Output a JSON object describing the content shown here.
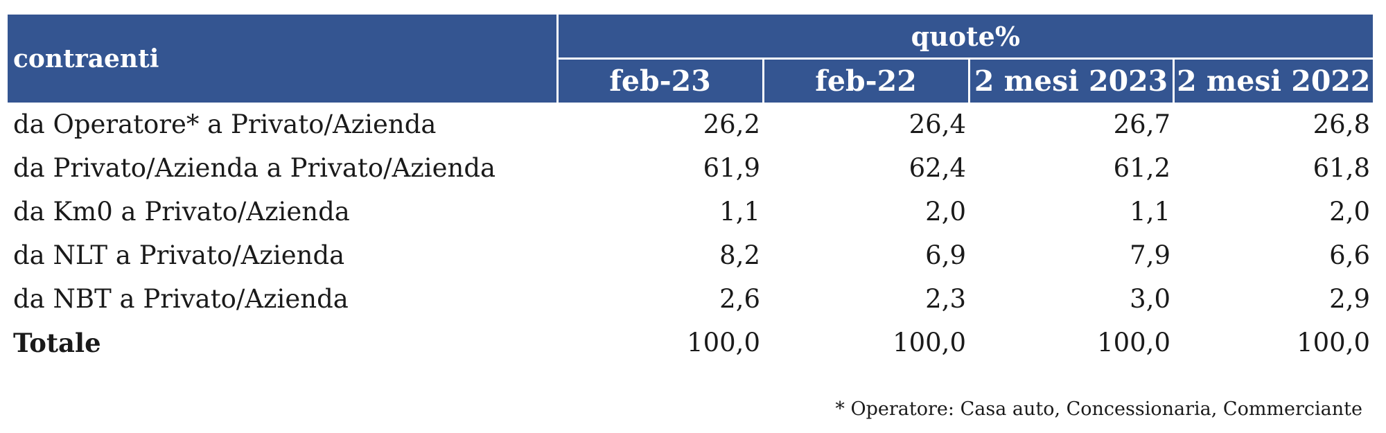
{
  "table": {
    "row_header": "contraenti",
    "group_header": "quote%",
    "columns": [
      "feb-23",
      "feb-22",
      "2 mesi 2023",
      "2 mesi 2022"
    ],
    "rows": [
      {
        "label": "da Operatore* a Privato/Azienda",
        "values": [
          "26,2",
          "26,4",
          "26,7",
          "26,8"
        ]
      },
      {
        "label": "da Privato/Azienda a Privato/Azienda",
        "values": [
          "61,9",
          "62,4",
          "61,2",
          "61,8"
        ]
      },
      {
        "label": "da Km0 a Privato/Azienda",
        "values": [
          "1,1",
          "2,0",
          "1,1",
          "2,0"
        ]
      },
      {
        "label": "da NLT a Privato/Azienda",
        "values": [
          "8,2",
          "6,9",
          "7,9",
          "6,6"
        ]
      },
      {
        "label": "da NBT a Privato/Azienda",
        "values": [
          "2,6",
          "2,3",
          "3,0",
          "2,9"
        ]
      },
      {
        "label": "Totale",
        "values": [
          "100,0",
          "100,0",
          "100,0",
          "100,0"
        ]
      }
    ]
  },
  "footnote": "* Operatore: Casa auto, Concessionaria, Commerciante",
  "colors": {
    "header_background": "#345591",
    "header_text": "#ffffff"
  }
}
